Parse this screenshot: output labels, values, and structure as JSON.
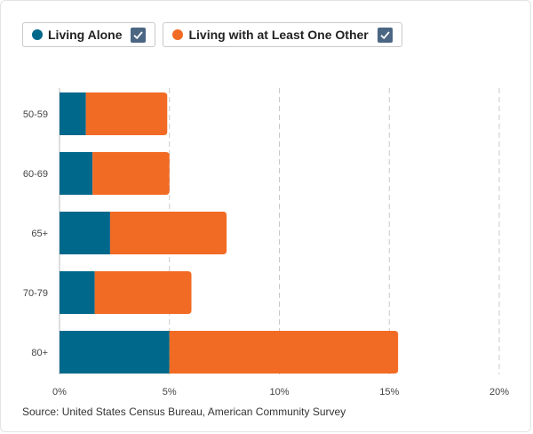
{
  "legend": {
    "items": [
      {
        "label": "Living Alone",
        "color": "#00688b",
        "checked": true
      },
      {
        "label": "Living with at Least One Other",
        "color": "#f26b24",
        "checked": true
      }
    ]
  },
  "source": "Source: United States Census Bureau, American Community Survey",
  "chart_data": {
    "type": "bar",
    "orientation": "horizontal",
    "stacked": true,
    "categories": [
      "50-59",
      "60-69",
      "65+",
      "70-79",
      "80+"
    ],
    "series": [
      {
        "name": "Living Alone",
        "color": "#00688b",
        "values": [
          1.2,
          1.5,
          2.3,
          1.6,
          5.0
        ]
      },
      {
        "name": "Living with at Least One Other",
        "color": "#f26b24",
        "values": [
          3.7,
          3.5,
          5.3,
          4.4,
          10.4
        ]
      }
    ],
    "xlim": [
      0,
      20
    ],
    "xticks": [
      "0%",
      "5%",
      "10%",
      "15%",
      "20%"
    ],
    "grid": "vertical-dashed",
    "legend_position": "top-left"
  }
}
